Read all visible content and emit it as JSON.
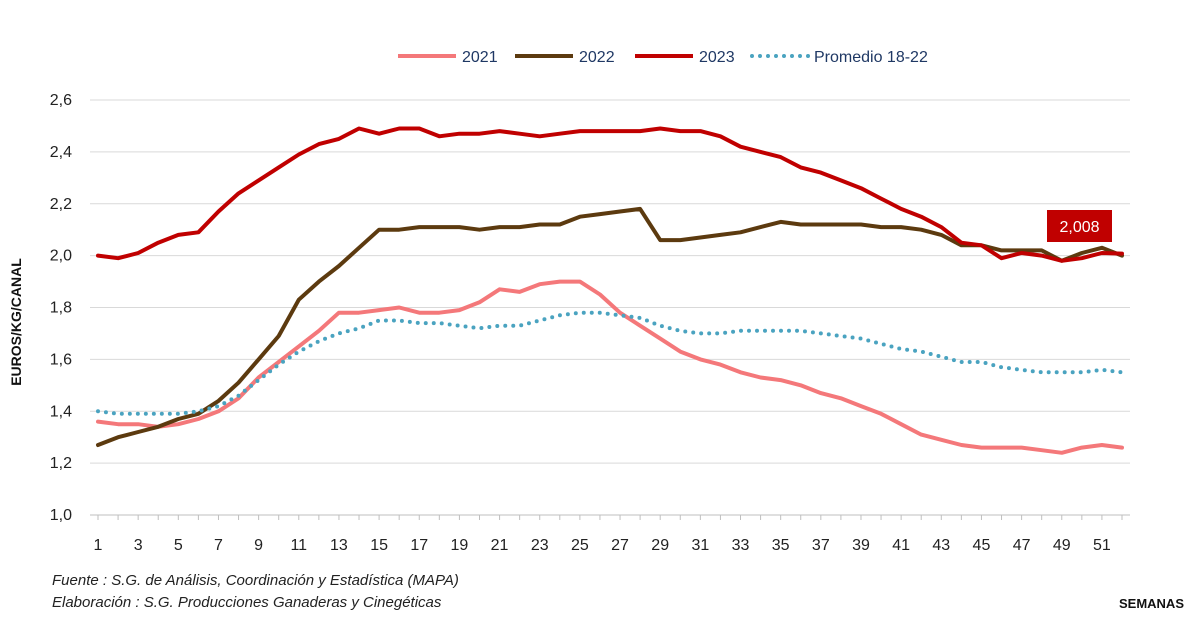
{
  "footer": {
    "source": "Fuente :  S.G. de Análisis, Coordinación y Estadística (MAPA)",
    "elaboration": "Elaboración : S.G. Producciones Ganaderas y Cinegéticas"
  },
  "chart_data": {
    "type": "line",
    "title": "",
    "xlabel": "SEMANAS",
    "ylabel": "EUROS/KG/CANAL",
    "ylim": [
      1.0,
      2.6
    ],
    "y_ticks": [
      "1,0",
      "1,2",
      "1,4",
      "1,6",
      "1,8",
      "2,0",
      "2,2",
      "2,4",
      "2,6"
    ],
    "x_ticks": [
      "1",
      "3",
      "5",
      "7",
      "9",
      "11",
      "13",
      "15",
      "17",
      "19",
      "21",
      "23",
      "25",
      "27",
      "29",
      "31",
      "33",
      "35",
      "37",
      "39",
      "41",
      "43",
      "45",
      "47",
      "49",
      "51"
    ],
    "xlim": [
      1,
      52
    ],
    "grid": true,
    "legend_position": "top",
    "annotation": {
      "text": "2,008",
      "x": 52,
      "y": 2.008,
      "color": "#c00000"
    },
    "x": [
      1,
      2,
      3,
      4,
      5,
      6,
      7,
      8,
      9,
      10,
      11,
      12,
      13,
      14,
      15,
      16,
      17,
      18,
      19,
      20,
      21,
      22,
      23,
      24,
      25,
      26,
      27,
      28,
      29,
      30,
      31,
      32,
      33,
      34,
      35,
      36,
      37,
      38,
      39,
      40,
      41,
      42,
      43,
      44,
      45,
      46,
      47,
      48,
      49,
      50,
      51,
      52
    ],
    "series": [
      {
        "name": "2021",
        "color": "#f4787a",
        "style": "solid",
        "values": [
          1.36,
          1.35,
          1.35,
          1.34,
          1.35,
          1.37,
          1.4,
          1.45,
          1.53,
          1.59,
          1.65,
          1.71,
          1.78,
          1.78,
          1.79,
          1.8,
          1.78,
          1.78,
          1.79,
          1.82,
          1.87,
          1.86,
          1.89,
          1.9,
          1.9,
          1.85,
          1.78,
          1.73,
          1.68,
          1.63,
          1.6,
          1.58,
          1.55,
          1.53,
          1.52,
          1.5,
          1.47,
          1.45,
          1.42,
          1.39,
          1.35,
          1.31,
          1.29,
          1.27,
          1.26,
          1.26,
          1.26,
          1.25,
          1.24,
          1.26,
          1.27,
          1.26
        ]
      },
      {
        "name": "2022",
        "color": "#5c3a0f",
        "style": "solid",
        "values": [
          1.27,
          1.3,
          1.32,
          1.34,
          1.37,
          1.39,
          1.44,
          1.51,
          1.6,
          1.69,
          1.83,
          1.9,
          1.96,
          2.03,
          2.1,
          2.1,
          2.11,
          2.11,
          2.11,
          2.1,
          2.11,
          2.11,
          2.12,
          2.12,
          2.15,
          2.16,
          2.17,
          2.18,
          2.06,
          2.06,
          2.07,
          2.08,
          2.09,
          2.11,
          2.13,
          2.12,
          2.12,
          2.12,
          2.12,
          2.11,
          2.11,
          2.1,
          2.08,
          2.04,
          2.04,
          2.02,
          2.02,
          2.02,
          1.98,
          2.01,
          2.03,
          2.0
        ]
      },
      {
        "name": "2023",
        "color": "#c00000",
        "style": "solid",
        "values": [
          2.0,
          1.99,
          2.01,
          2.05,
          2.08,
          2.09,
          2.17,
          2.24,
          2.29,
          2.34,
          2.39,
          2.43,
          2.45,
          2.49,
          2.47,
          2.49,
          2.49,
          2.46,
          2.47,
          2.47,
          2.48,
          2.47,
          2.46,
          2.47,
          2.48,
          2.48,
          2.48,
          2.48,
          2.49,
          2.48,
          2.48,
          2.46,
          2.42,
          2.4,
          2.38,
          2.34,
          2.32,
          2.29,
          2.26,
          2.22,
          2.18,
          2.15,
          2.11,
          2.05,
          2.04,
          1.99,
          2.01,
          2.0,
          1.98,
          1.99,
          2.01,
          2.008
        ]
      },
      {
        "name": "Promedio 18-22",
        "color": "#4aa3c0",
        "style": "dotted",
        "values": [
          1.4,
          1.39,
          1.39,
          1.39,
          1.39,
          1.4,
          1.42,
          1.46,
          1.52,
          1.58,
          1.63,
          1.67,
          1.7,
          1.72,
          1.75,
          1.75,
          1.74,
          1.74,
          1.73,
          1.72,
          1.73,
          1.73,
          1.75,
          1.77,
          1.78,
          1.78,
          1.77,
          1.76,
          1.73,
          1.71,
          1.7,
          1.7,
          1.71,
          1.71,
          1.71,
          1.71,
          1.7,
          1.69,
          1.68,
          1.66,
          1.64,
          1.63,
          1.61,
          1.59,
          1.59,
          1.57,
          1.56,
          1.55,
          1.55,
          1.55,
          1.56,
          1.55
        ]
      }
    ]
  }
}
